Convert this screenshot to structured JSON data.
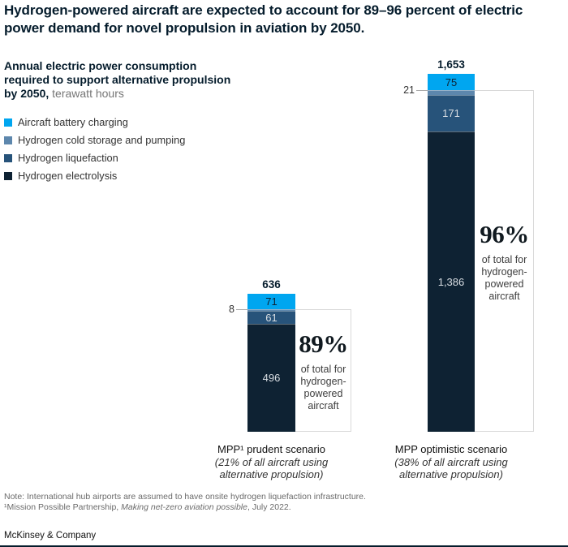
{
  "title": "Hydrogen-powered aircraft are expected to account for 89–96 percent of electric power demand for novel propulsion in aviation by 2050.",
  "subtitle": {
    "bold": "Annual electric power consumption required to support alternative propulsion by 2050,",
    "unit": " terawatt hours"
  },
  "legend": [
    {
      "label": "Aircraft battery charging",
      "color": "#00a6f0"
    },
    {
      "label": "Hydrogen cold storage and pumping",
      "color": "#5d87ad"
    },
    {
      "label": "Hydrogen liquefaction",
      "color": "#27537a"
    },
    {
      "label": "Hydrogen electrolysis",
      "color": "#0e2233"
    }
  ],
  "chart_data": {
    "type": "bar",
    "stacked": true,
    "unit": "terawatt hours",
    "legend_position": "top-left",
    "categories": [
      {
        "name": "MPP¹ prudent scenario",
        "note_lines": [
          "(21% of all aircraft using",
          "alternative propulsion)"
        ]
      },
      {
        "name": "MPP optimistic scenario",
        "note_lines": [
          "(38% of all aircraft using",
          "alternative propulsion)"
        ]
      }
    ],
    "series": [
      {
        "name": "Aircraft battery charging",
        "values": [
          71,
          75
        ]
      },
      {
        "name": "Hydrogen cold storage and pumping",
        "values": [
          8,
          21
        ]
      },
      {
        "name": "Hydrogen liquefaction",
        "values": [
          61,
          171
        ]
      },
      {
        "name": "Hydrogen electrolysis",
        "values": [
          496,
          1386
        ]
      }
    ],
    "totals": [
      636,
      1653
    ],
    "side_labels": [
      8,
      21
    ],
    "callouts": [
      {
        "percent": "89%",
        "caption_lines": [
          "of total for",
          "hydrogen-",
          "powered",
          "aircraft"
        ]
      },
      {
        "percent": "96%",
        "caption_lines": [
          "of total for",
          "hydrogen-",
          "powered",
          "aircraft"
        ]
      }
    ]
  },
  "footnotes": {
    "note": "Note: International hub airports are assumed to have onsite hydrogen liquefaction infrastructure.",
    "citation_pre": "¹Mission Possible Partnership, ",
    "citation_italic": "Making net-zero aviation possible",
    "citation_post": ", July 2022."
  },
  "source": "McKinsey & Company"
}
